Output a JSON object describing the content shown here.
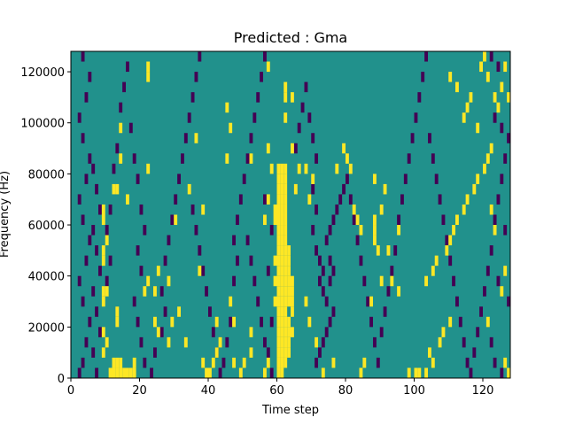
{
  "chart_data": {
    "type": "heatmap",
    "title": "Predicted : Gma",
    "xlabel": "Time step",
    "ylabel": "Frequency (Hz)",
    "xlim": [
      0,
      128
    ],
    "ylim": [
      0,
      128000
    ],
    "x_ticks": [
      0,
      20,
      40,
      60,
      80,
      100,
      120
    ],
    "y_ticks": [
      0,
      20000,
      40000,
      60000,
      80000,
      100000,
      120000
    ],
    "x_tick_labels": [
      "0",
      "20",
      "40",
      "60",
      "80",
      "100",
      "120"
    ],
    "y_tick_labels": [
      "0",
      "20000",
      "40000",
      "60000",
      "80000",
      "100000",
      "120000"
    ],
    "grid": false,
    "legend": "none",
    "value_levels": [
      -1,
      0,
      1
    ],
    "colors": {
      "low": "#440154",
      "mid": "#21918c",
      "high": "#fde725"
    },
    "background_value": 0,
    "cell_height": 4000,
    "high_cells": [
      [
        11,
        2000
      ],
      [
        12,
        2000
      ],
      [
        13,
        2000
      ],
      [
        14,
        2000
      ],
      [
        15,
        2000
      ],
      [
        16,
        2000
      ],
      [
        17,
        2000
      ],
      [
        18,
        2000
      ],
      [
        12,
        6000
      ],
      [
        13,
        6000
      ],
      [
        14,
        6000
      ],
      [
        18,
        6000
      ],
      [
        9,
        10000
      ],
      [
        10,
        14000
      ],
      [
        9,
        18000
      ],
      [
        9,
        30000
      ],
      [
        9,
        34000
      ],
      [
        10,
        34000
      ],
      [
        9,
        46000
      ],
      [
        9,
        50000
      ],
      [
        10,
        54000
      ],
      [
        9,
        62000
      ],
      [
        9,
        66000
      ],
      [
        12,
        74000
      ],
      [
        13,
        74000
      ],
      [
        13,
        22000
      ],
      [
        13,
        26000
      ],
      [
        21,
        34000
      ],
      [
        22,
        38000
      ],
      [
        24,
        34000
      ],
      [
        25,
        42000
      ],
      [
        24,
        22000
      ],
      [
        25,
        18000
      ],
      [
        28,
        38000
      ],
      [
        28,
        14000
      ],
      [
        29,
        22000
      ],
      [
        31,
        26000
      ],
      [
        33,
        14000
      ],
      [
        30,
        62000
      ],
      [
        22,
        82000
      ],
      [
        22,
        118000
      ],
      [
        22,
        122000
      ],
      [
        16,
        70000
      ],
      [
        14,
        86000
      ],
      [
        14,
        98000
      ],
      [
        37,
        42000
      ],
      [
        38,
        6000
      ],
      [
        39,
        2000
      ],
      [
        40,
        2000
      ],
      [
        41,
        6000
      ],
      [
        42,
        10000
      ],
      [
        43,
        14000
      ],
      [
        42,
        22000
      ],
      [
        46,
        30000
      ],
      [
        47,
        22000
      ],
      [
        47,
        6000
      ],
      [
        38,
        66000
      ],
      [
        34,
        74000
      ],
      [
        36,
        94000
      ],
      [
        45,
        86000
      ],
      [
        45,
        106000
      ],
      [
        46,
        98000
      ],
      [
        49,
        2000
      ],
      [
        50,
        6000
      ],
      [
        52,
        10000
      ],
      [
        52,
        18000
      ],
      [
        52,
        86000
      ],
      [
        56,
        2000
      ],
      [
        57,
        6000
      ],
      [
        56,
        62000
      ],
      [
        57,
        70000
      ],
      [
        57,
        90000
      ],
      [
        57,
        122000
      ],
      [
        58,
        82000
      ],
      [
        59,
        30000
      ],
      [
        59,
        38000
      ],
      [
        59,
        46000
      ],
      [
        59,
        62000
      ],
      [
        59,
        66000
      ],
      [
        60,
        2000
      ],
      [
        60,
        6000
      ],
      [
        60,
        10000
      ],
      [
        60,
        14000
      ],
      [
        60,
        18000
      ],
      [
        60,
        22000
      ],
      [
        60,
        26000
      ],
      [
        60,
        30000
      ],
      [
        60,
        34000
      ],
      [
        60,
        38000
      ],
      [
        60,
        42000
      ],
      [
        60,
        46000
      ],
      [
        60,
        50000
      ],
      [
        60,
        54000
      ],
      [
        60,
        58000
      ],
      [
        60,
        62000
      ],
      [
        60,
        66000
      ],
      [
        60,
        70000
      ],
      [
        60,
        74000
      ],
      [
        60,
        78000
      ],
      [
        60,
        82000
      ],
      [
        61,
        2000
      ],
      [
        61,
        6000
      ],
      [
        61,
        10000
      ],
      [
        61,
        14000
      ],
      [
        61,
        18000
      ],
      [
        61,
        22000
      ],
      [
        61,
        26000
      ],
      [
        61,
        30000
      ],
      [
        61,
        34000
      ],
      [
        61,
        38000
      ],
      [
        61,
        42000
      ],
      [
        61,
        46000
      ],
      [
        61,
        50000
      ],
      [
        61,
        54000
      ],
      [
        61,
        58000
      ],
      [
        61,
        62000
      ],
      [
        61,
        66000
      ],
      [
        61,
        70000
      ],
      [
        61,
        74000
      ],
      [
        61,
        78000
      ],
      [
        61,
        82000
      ],
      [
        62,
        6000
      ],
      [
        62,
        10000
      ],
      [
        62,
        14000
      ],
      [
        62,
        18000
      ],
      [
        62,
        22000
      ],
      [
        62,
        26000
      ],
      [
        62,
        30000
      ],
      [
        62,
        34000
      ],
      [
        62,
        38000
      ],
      [
        62,
        42000
      ],
      [
        62,
        46000
      ],
      [
        62,
        50000
      ],
      [
        62,
        54000
      ],
      [
        62,
        58000
      ],
      [
        62,
        62000
      ],
      [
        62,
        66000
      ],
      [
        62,
        70000
      ],
      [
        62,
        74000
      ],
      [
        62,
        78000
      ],
      [
        62,
        82000
      ],
      [
        63,
        10000
      ],
      [
        63,
        14000
      ],
      [
        63,
        18000
      ],
      [
        63,
        22000
      ],
      [
        63,
        30000
      ],
      [
        63,
        34000
      ],
      [
        63,
        38000
      ],
      [
        63,
        42000
      ],
      [
        63,
        46000
      ],
      [
        63,
        50000
      ],
      [
        64,
        18000
      ],
      [
        64,
        26000
      ],
      [
        64,
        30000
      ],
      [
        64,
        34000
      ],
      [
        64,
        38000
      ],
      [
        62,
        102000
      ],
      [
        62,
        110000
      ],
      [
        62,
        114000
      ],
      [
        64,
        110000
      ],
      [
        64,
        90000
      ],
      [
        65,
        74000
      ],
      [
        66,
        82000
      ],
      [
        68,
        82000
      ],
      [
        70,
        78000
      ],
      [
        69,
        70000
      ],
      [
        68,
        30000
      ],
      [
        69,
        22000
      ],
      [
        71,
        14000
      ],
      [
        73,
        2000
      ],
      [
        76,
        6000
      ],
      [
        77,
        82000
      ],
      [
        79,
        90000
      ],
      [
        80,
        86000
      ],
      [
        81,
        82000
      ],
      [
        82,
        66000
      ],
      [
        83,
        62000
      ],
      [
        84,
        58000
      ],
      [
        88,
        62000
      ],
      [
        88,
        58000
      ],
      [
        88,
        54000
      ],
      [
        89,
        50000
      ],
      [
        88,
        78000
      ],
      [
        91,
        74000
      ],
      [
        90,
        66000
      ],
      [
        92,
        50000
      ],
      [
        95,
        58000
      ],
      [
        84,
        2000
      ],
      [
        85,
        6000
      ],
      [
        87,
        30000
      ],
      [
        90,
        38000
      ],
      [
        93,
        38000
      ],
      [
        95,
        34000
      ],
      [
        98,
        2000
      ],
      [
        100,
        2000
      ],
      [
        101,
        2000
      ],
      [
        103,
        2000
      ],
      [
        105,
        6000
      ],
      [
        104,
        10000
      ],
      [
        107,
        14000
      ],
      [
        108,
        18000
      ],
      [
        110,
        22000
      ],
      [
        103,
        38000
      ],
      [
        105,
        42000
      ],
      [
        106,
        46000
      ],
      [
        109,
        50000
      ],
      [
        110,
        54000
      ],
      [
        111,
        58000
      ],
      [
        112,
        62000
      ],
      [
        114,
        66000
      ],
      [
        115,
        70000
      ],
      [
        117,
        74000
      ],
      [
        118,
        78000
      ],
      [
        120,
        82000
      ],
      [
        121,
        86000
      ],
      [
        122,
        90000
      ],
      [
        118,
        98000
      ],
      [
        114,
        102000
      ],
      [
        115,
        106000
      ],
      [
        116,
        110000
      ],
      [
        112,
        114000
      ],
      [
        110,
        118000
      ],
      [
        119,
        122000
      ],
      [
        120,
        126000
      ],
      [
        121,
        118000
      ],
      [
        123,
        110000
      ],
      [
        124,
        106000
      ],
      [
        125,
        114000
      ],
      [
        126,
        122000
      ],
      [
        127,
        110000
      ],
      [
        127,
        2000
      ],
      [
        126,
        6000
      ],
      [
        125,
        34000
      ],
      [
        123,
        58000
      ],
      [
        122,
        66000
      ],
      [
        126,
        42000
      ],
      [
        121,
        22000
      ]
    ],
    "low_cells": [
      [
        2,
        2000
      ],
      [
        3,
        6000
      ],
      [
        4,
        14000
      ],
      [
        5,
        22000
      ],
      [
        3,
        30000
      ],
      [
        2,
        38000
      ],
      [
        4,
        46000
      ],
      [
        5,
        54000
      ],
      [
        3,
        62000
      ],
      [
        2,
        70000
      ],
      [
        4,
        78000
      ],
      [
        5,
        86000
      ],
      [
        3,
        94000
      ],
      [
        2,
        102000
      ],
      [
        4,
        110000
      ],
      [
        5,
        118000
      ],
      [
        3,
        126000
      ],
      [
        6,
        82000
      ],
      [
        7,
        74000
      ],
      [
        8,
        66000
      ],
      [
        6,
        58000
      ],
      [
        7,
        50000
      ],
      [
        8,
        42000
      ],
      [
        6,
        34000
      ],
      [
        7,
        26000
      ],
      [
        8,
        18000
      ],
      [
        6,
        10000
      ],
      [
        7,
        2000
      ],
      [
        10,
        38000
      ],
      [
        11,
        46000
      ],
      [
        10,
        58000
      ],
      [
        11,
        66000
      ],
      [
        12,
        82000
      ],
      [
        13,
        90000
      ],
      [
        14,
        106000
      ],
      [
        15,
        114000
      ],
      [
        16,
        122000
      ],
      [
        17,
        98000
      ],
      [
        18,
        86000
      ],
      [
        19,
        78000
      ],
      [
        20,
        66000
      ],
      [
        21,
        58000
      ],
      [
        19,
        50000
      ],
      [
        20,
        42000
      ],
      [
        18,
        30000
      ],
      [
        19,
        22000
      ],
      [
        20,
        14000
      ],
      [
        21,
        6000
      ],
      [
        23,
        2000
      ],
      [
        24,
        10000
      ],
      [
        26,
        18000
      ],
      [
        27,
        26000
      ],
      [
        26,
        34000
      ],
      [
        27,
        46000
      ],
      [
        28,
        54000
      ],
      [
        29,
        62000
      ],
      [
        30,
        70000
      ],
      [
        31,
        78000
      ],
      [
        32,
        86000
      ],
      [
        33,
        94000
      ],
      [
        34,
        102000
      ],
      [
        35,
        110000
      ],
      [
        36,
        118000
      ],
      [
        37,
        126000
      ],
      [
        35,
        66000
      ],
      [
        36,
        58000
      ],
      [
        37,
        50000
      ],
      [
        38,
        42000
      ],
      [
        39,
        34000
      ],
      [
        40,
        26000
      ],
      [
        41,
        18000
      ],
      [
        42,
        10000
      ],
      [
        43,
        2000
      ],
      [
        44,
        6000
      ],
      [
        45,
        14000
      ],
      [
        46,
        22000
      ],
      [
        47,
        38000
      ],
      [
        48,
        46000
      ],
      [
        47,
        54000
      ],
      [
        48,
        62000
      ],
      [
        49,
        70000
      ],
      [
        50,
        78000
      ],
      [
        51,
        86000
      ],
      [
        52,
        94000
      ],
      [
        53,
        102000
      ],
      [
        54,
        110000
      ],
      [
        55,
        118000
      ],
      [
        56,
        126000
      ],
      [
        51,
        54000
      ],
      [
        52,
        46000
      ],
      [
        53,
        38000
      ],
      [
        54,
        30000
      ],
      [
        55,
        22000
      ],
      [
        56,
        14000
      ],
      [
        57,
        10000
      ],
      [
        58,
        2000
      ],
      [
        58,
        22000
      ],
      [
        57,
        42000
      ],
      [
        58,
        58000
      ],
      [
        56,
        70000
      ],
      [
        65,
        90000
      ],
      [
        66,
        98000
      ],
      [
        67,
        106000
      ],
      [
        68,
        114000
      ],
      [
        69,
        102000
      ],
      [
        70,
        94000
      ],
      [
        71,
        86000
      ],
      [
        70,
        74000
      ],
      [
        71,
        66000
      ],
      [
        70,
        58000
      ],
      [
        71,
        50000
      ],
      [
        72,
        46000
      ],
      [
        73,
        42000
      ],
      [
        72,
        38000
      ],
      [
        73,
        34000
      ],
      [
        74,
        30000
      ],
      [
        75,
        38000
      ],
      [
        76,
        42000
      ],
      [
        75,
        46000
      ],
      [
        76,
        26000
      ],
      [
        75,
        22000
      ],
      [
        74,
        18000
      ],
      [
        73,
        14000
      ],
      [
        72,
        10000
      ],
      [
        71,
        6000
      ],
      [
        74,
        54000
      ],
      [
        75,
        58000
      ],
      [
        76,
        62000
      ],
      [
        77,
        66000
      ],
      [
        78,
        70000
      ],
      [
        79,
        74000
      ],
      [
        80,
        78000
      ],
      [
        81,
        70000
      ],
      [
        82,
        62000
      ],
      [
        83,
        54000
      ],
      [
        84,
        46000
      ],
      [
        85,
        38000
      ],
      [
        86,
        30000
      ],
      [
        87,
        22000
      ],
      [
        88,
        14000
      ],
      [
        89,
        6000
      ],
      [
        90,
        18000
      ],
      [
        91,
        26000
      ],
      [
        92,
        34000
      ],
      [
        93,
        42000
      ],
      [
        94,
        50000
      ],
      [
        95,
        62000
      ],
      [
        96,
        70000
      ],
      [
        97,
        78000
      ],
      [
        98,
        86000
      ],
      [
        99,
        94000
      ],
      [
        100,
        102000
      ],
      [
        101,
        110000
      ],
      [
        102,
        118000
      ],
      [
        103,
        126000
      ],
      [
        104,
        94000
      ],
      [
        105,
        86000
      ],
      [
        106,
        78000
      ],
      [
        107,
        70000
      ],
      [
        108,
        62000
      ],
      [
        109,
        54000
      ],
      [
        110,
        46000
      ],
      [
        111,
        38000
      ],
      [
        112,
        30000
      ],
      [
        113,
        22000
      ],
      [
        114,
        14000
      ],
      [
        115,
        6000
      ],
      [
        116,
        2000
      ],
      [
        117,
        10000
      ],
      [
        118,
        18000
      ],
      [
        119,
        26000
      ],
      [
        120,
        34000
      ],
      [
        121,
        42000
      ],
      [
        122,
        50000
      ],
      [
        123,
        62000
      ],
      [
        124,
        70000
      ],
      [
        125,
        78000
      ],
      [
        126,
        86000
      ],
      [
        127,
        94000
      ],
      [
        125,
        98000
      ],
      [
        123,
        102000
      ],
      [
        124,
        122000
      ],
      [
        122,
        126000
      ],
      [
        126,
        58000
      ],
      [
        127,
        30000
      ],
      [
        124,
        38000
      ],
      [
        122,
        14000
      ],
      [
        123,
        6000
      ],
      [
        125,
        2000
      ]
    ]
  }
}
